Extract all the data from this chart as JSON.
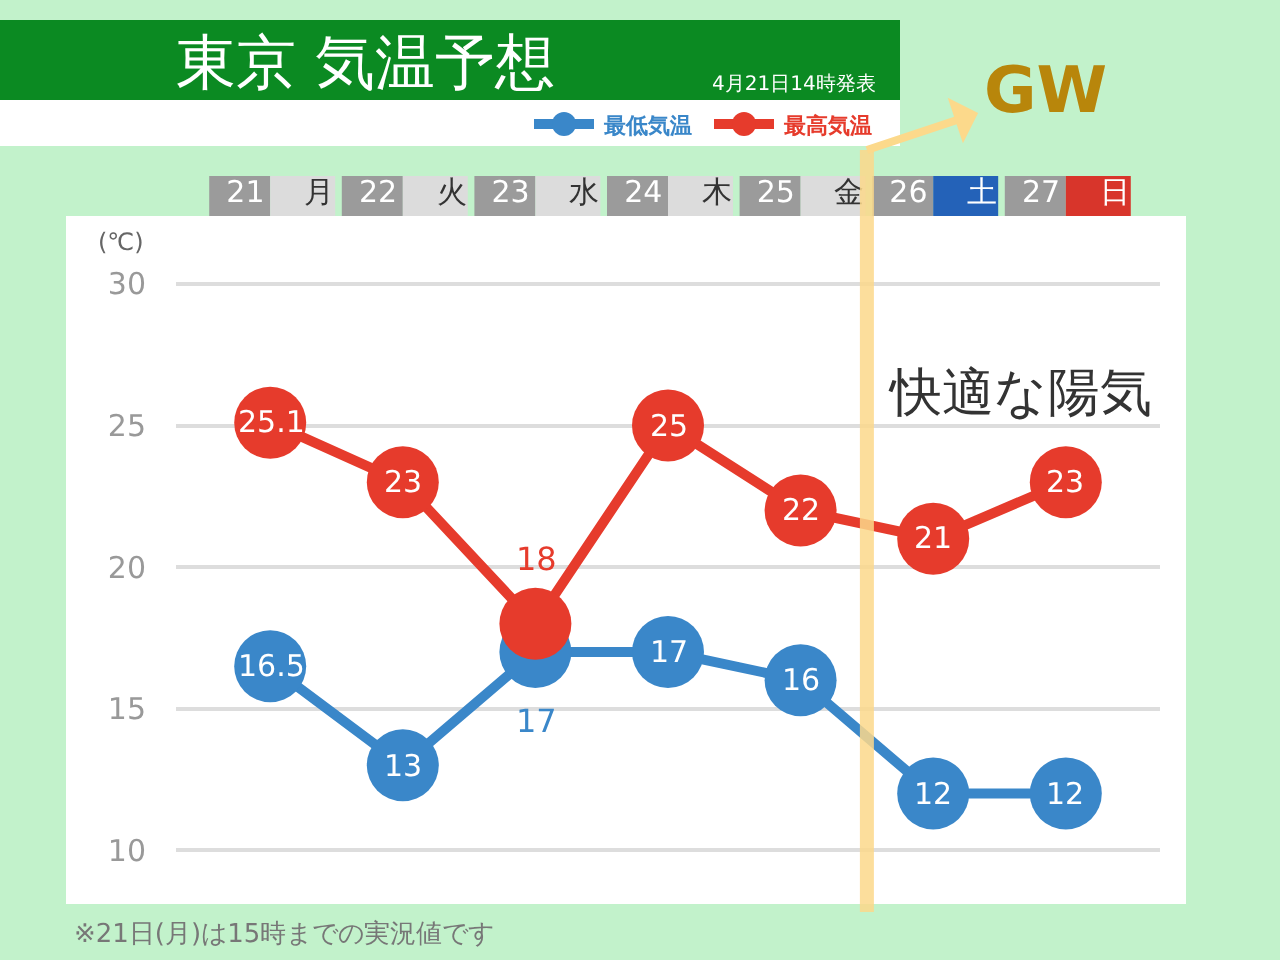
{
  "chart_data": {
    "type": "line",
    "title": "東京 気温予想",
    "subtitle": "4月21日14時発表",
    "ylabel": "(℃)",
    "categories": [
      "21 月",
      "22 火",
      "23 水",
      "24 木",
      "25 金",
      "26 土",
      "27 日"
    ],
    "series": [
      {
        "name": "最低気温",
        "color": "#3a87c9",
        "values": [
          16.5,
          13,
          17,
          17,
          16,
          12,
          12
        ]
      },
      {
        "name": "最高気温",
        "color": "#e63b2c",
        "values": [
          25.1,
          23,
          18,
          25,
          22,
          21,
          23
        ]
      }
    ],
    "ylim": [
      8.1,
      32.4
    ],
    "yticks": [
      10,
      15,
      20,
      25,
      30
    ],
    "grid": "y",
    "legend": "top right",
    "marker": "circle",
    "line_style": "solid",
    "data_labels": true,
    "ref_lines": [
      {
        "axis": "x",
        "value": "26 土",
        "label": "GW",
        "color": "#fcd98b"
      }
    ],
    "annotations": [
      "快適な陽気",
      "※21日(月)は15時までの実況値です"
    ]
  }
}
